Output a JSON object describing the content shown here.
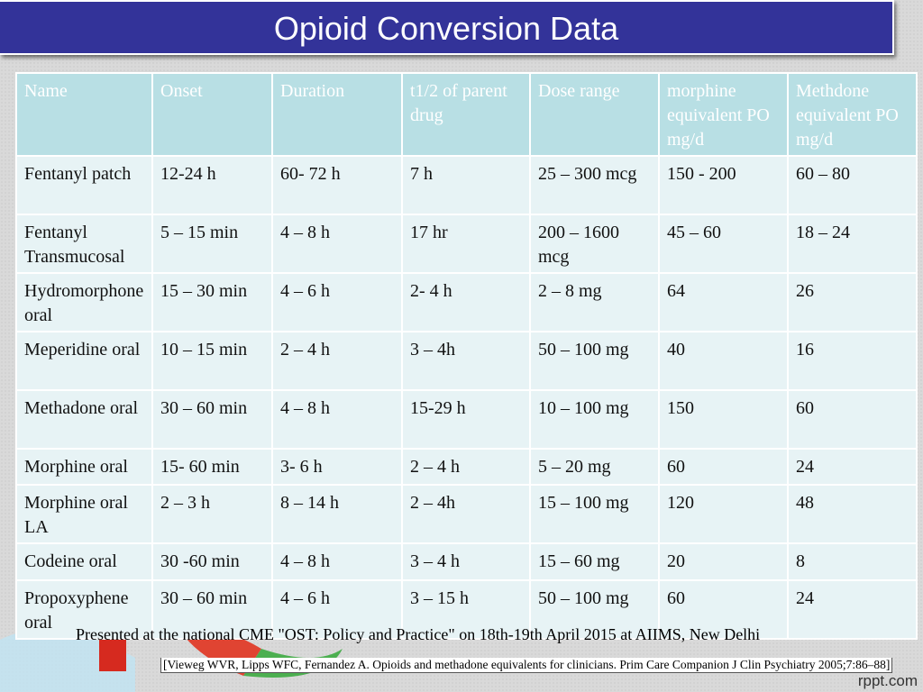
{
  "title": "Opioid Conversion Data",
  "table": {
    "headers": [
      "Name",
      "Onset",
      "Duration",
      "t1/2 of parent drug",
      "Dose range",
      "morphine equivalent PO mg/d",
      "Methdone equivalent PO mg/d"
    ],
    "rows": [
      [
        "Fentanyl patch",
        "12-24 h",
        "60- 72 h",
        "7 h",
        "25 – 300 mcg",
        "150 - 200",
        "60 – 80"
      ],
      [
        "Fentanyl Transmucosal",
        "5 – 15 min",
        "4 – 8 h",
        "17 hr",
        "200 – 1600 mcg",
        "45 – 60",
        "18 – 24"
      ],
      [
        "Hydromorphone oral",
        "15 – 30 min",
        "4 – 6 h",
        "2- 4 h",
        "2 – 8 mg",
        "64",
        "26"
      ],
      [
        "Meperidine oral",
        "10 – 15 min",
        "2 – 4 h",
        "3 – 4h",
        "50 – 100 mg",
        "40",
        "16"
      ],
      [
        "Methadone oral",
        "30 – 60 min",
        "4 – 8 h",
        "15-29 h",
        "10 – 100 mg",
        "150",
        "60"
      ],
      [
        "Morphine oral",
        "15- 60 min",
        "3- 6 h",
        "2 – 4 h",
        "5 – 20 mg",
        "60",
        "24"
      ],
      [
        "Morphine oral LA",
        "2 – 3 h",
        "8 – 14 h",
        "2 – 4h",
        "15 – 100 mg",
        "120",
        "48"
      ],
      [
        "Codeine oral",
        "30 -60 min",
        "4 – 8 h",
        "3 – 4 h",
        "15 – 60 mg",
        "20",
        "8"
      ],
      [
        "Propoxyphene oral",
        "30 – 60 min",
        "4 – 6 h",
        "3 – 15 h",
        "50 – 100 mg",
        "60",
        "24"
      ]
    ]
  },
  "footnote": "Presented at the national CME \"OST: Policy and Practice\" on 18th-19th April 2015 at AIIMS, New Delhi",
  "citation": "[Vieweg WVR, Lipps WFC, Fernandez A. Opioids and methadone equivalents for clinicians. Prim Care Companion J Clin Psychiatry 2005;7:86–88]",
  "brand": "rppt.com"
}
